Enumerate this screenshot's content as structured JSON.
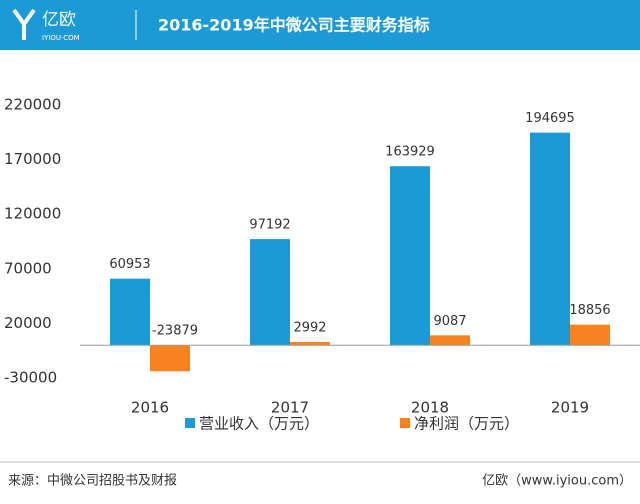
{
  "header": {
    "logo": "亿欧",
    "logo_sub": "IYIOU·COM"
  },
  "chart_data": {
    "type": "bar",
    "title": "2016-2019年中微公司主要财务指标",
    "categories": [
      "2016",
      "2017",
      "2018",
      "2019"
    ],
    "series": [
      {
        "name": "营业收入（万元）",
        "color": "#1b9ad6",
        "values": [
          60953,
          97192,
          163929,
          194695
        ]
      },
      {
        "name": "净利润（万元）",
        "color": "#f7821f",
        "values": [
          -23879,
          2992,
          9087,
          18856
        ]
      }
    ],
    "ylim": [
      -30000,
      220000
    ],
    "yticks": [
      -30000,
      20000,
      70000,
      120000,
      170000,
      220000
    ],
    "grid": false,
    "legend": "bottom"
  },
  "footer": {
    "source": "来源：中微公司招股书及财报",
    "brand": "亿欧（www.iyiou.com）"
  }
}
